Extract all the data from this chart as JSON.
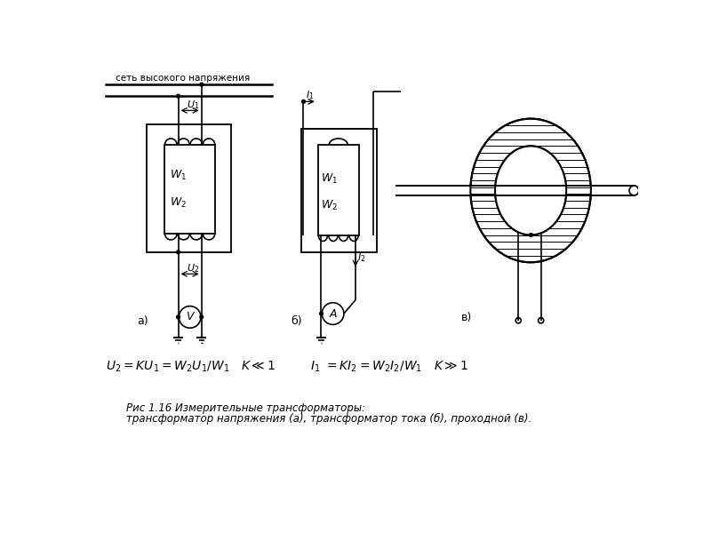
{
  "bg_color": "#ffffff",
  "line_color": "#000000",
  "top_text": "сеть высокого напряжения",
  "label_a": "а)",
  "label_b": "б)",
  "label_c": "в)",
  "caption_line1": "Рис 1.16 Измерительные трансформаторы:",
  "caption_line2": "трансформатор напряжения (а), трансформатор тока (б), проходной (в)."
}
